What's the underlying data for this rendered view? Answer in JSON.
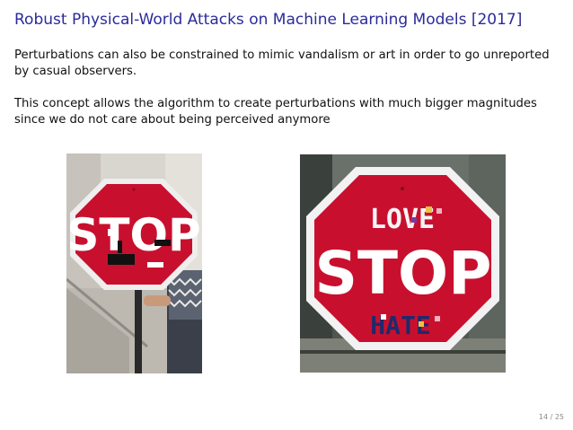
{
  "slide": {
    "title": "Robust Physical-World Attacks on Machine Learning Models [2017]",
    "paragraphs": [
      "Perturbations can also be constrained to mimic vandalism or art in order to go unreported by casual observers.",
      "This concept allows the algorithm to create perturbations with much bigger magnitudes since we do not care about being perceived anymore"
    ],
    "page_number": "14 / 25"
  },
  "left_photo": {
    "sign_text": "STOP"
  },
  "right_photo": {
    "sign_text": "STOP",
    "top_graffiti": "LOVE",
    "bottom_graffiti": "HATE"
  },
  "colors": {
    "title": "#2b2b9a",
    "sign_red": "#c8102e",
    "sign_border": "#f2f2f2"
  }
}
